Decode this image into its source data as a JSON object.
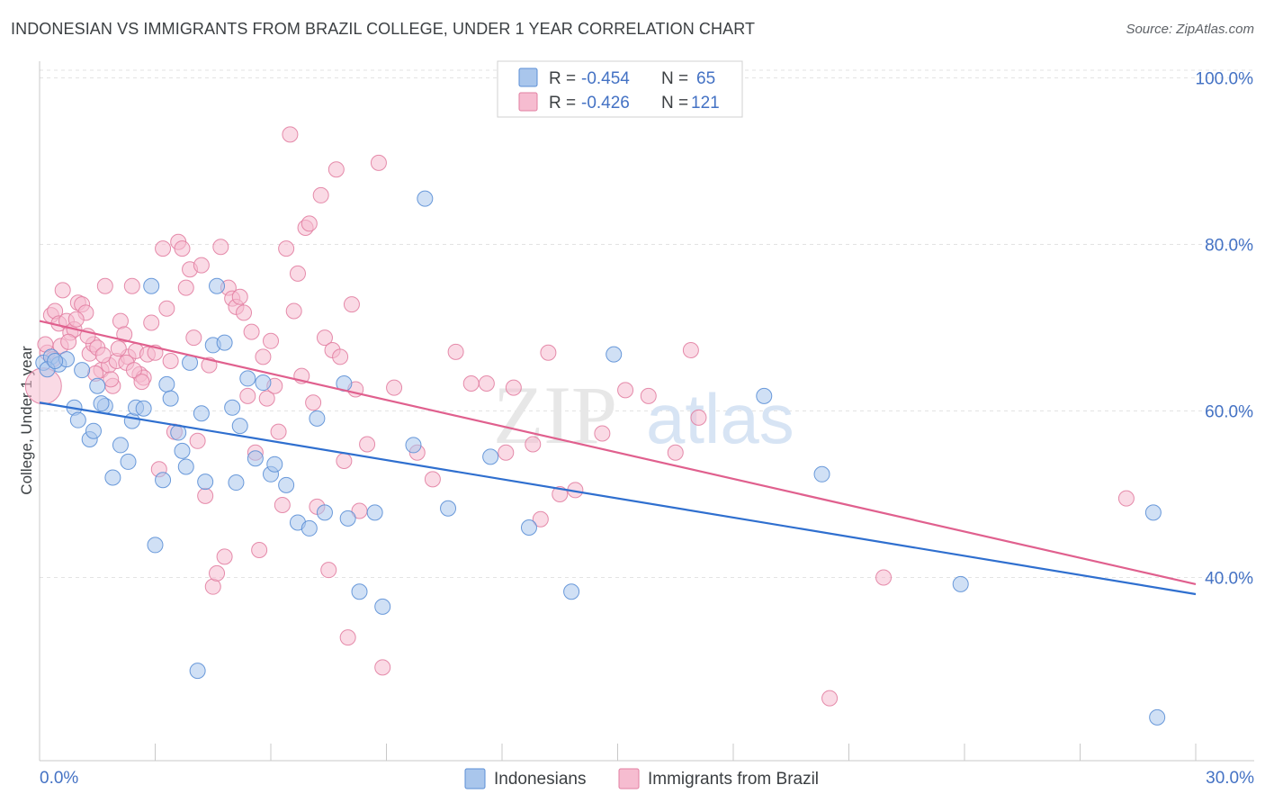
{
  "header": {
    "title": "INDONESIAN VS IMMIGRANTS FROM BRAZIL COLLEGE, UNDER 1 YEAR CORRELATION CHART",
    "source": "Source: ZipAtlas.com"
  },
  "watermark": {
    "zip": "ZIP",
    "atlas": "atlas"
  },
  "legend_top": [
    {
      "r_label": "R = ",
      "r_value": "-0.454",
      "n_label": "N = ",
      "n_value": "65",
      "color": "#a9c6ec",
      "stroke": "#5b8fd6"
    },
    {
      "r_label": "R = ",
      "r_value": "-0.426",
      "n_label": "N = ",
      "n_value": "121",
      "color": "#f6bcd0",
      "stroke": "#e27fa2"
    }
  ],
  "chart_data": {
    "type": "scatter",
    "title": "INDONESIAN VS IMMIGRANTS FROM BRAZIL COLLEGE, UNDER 1 YEAR CORRELATION CHART",
    "xlabel": "",
    "ylabel": "College, Under 1 year",
    "xlim": [
      0,
      30
    ],
    "ylim": [
      18,
      102
    ],
    "x_tick_labels": [
      "0.0%",
      "30.0%"
    ],
    "y_ticks": [
      40,
      60,
      80,
      100
    ],
    "y_tick_labels": [
      "40.0%",
      "60.0%",
      "80.0%",
      "100.0%"
    ],
    "grid": true,
    "legend_position": "top-center",
    "series": [
      {
        "name": "Indonesians",
        "color": "#a9c6ec",
        "stroke": "#5b8fd6",
        "line_color": "#2f6fcf",
        "trend": [
          [
            0,
            61.0
          ],
          [
            30,
            38.0
          ]
        ],
        "points": [
          [
            0.1,
            65.8
          ],
          [
            0.3,
            66.5
          ],
          [
            0.5,
            65.6
          ],
          [
            0.7,
            66.2
          ],
          [
            0.9,
            60.4
          ],
          [
            1.0,
            58.9
          ],
          [
            1.1,
            64.9
          ],
          [
            1.3,
            56.6
          ],
          [
            1.4,
            57.6
          ],
          [
            1.5,
            63.0
          ],
          [
            1.7,
            60.6
          ],
          [
            1.9,
            52.0
          ],
          [
            2.1,
            55.9
          ],
          [
            2.3,
            53.9
          ],
          [
            2.4,
            58.8
          ],
          [
            2.5,
            60.4
          ],
          [
            2.7,
            60.3
          ],
          [
            2.9,
            75.0
          ],
          [
            3.0,
            43.9
          ],
          [
            3.2,
            51.7
          ],
          [
            3.3,
            63.2
          ],
          [
            3.4,
            61.5
          ],
          [
            3.6,
            57.4
          ],
          [
            3.7,
            55.2
          ],
          [
            3.8,
            53.3
          ],
          [
            3.9,
            65.8
          ],
          [
            4.1,
            28.8
          ],
          [
            4.2,
            59.7
          ],
          [
            4.3,
            51.5
          ],
          [
            4.5,
            67.9
          ],
          [
            4.6,
            75.0
          ],
          [
            4.8,
            68.2
          ],
          [
            5.0,
            60.4
          ],
          [
            5.1,
            51.4
          ],
          [
            5.2,
            58.2
          ],
          [
            5.4,
            63.9
          ],
          [
            5.6,
            54.3
          ],
          [
            5.8,
            63.4
          ],
          [
            6.0,
            52.4
          ],
          [
            6.1,
            53.6
          ],
          [
            6.4,
            51.1
          ],
          [
            6.7,
            46.6
          ],
          [
            7.0,
            45.9
          ],
          [
            7.2,
            59.1
          ],
          [
            7.4,
            47.8
          ],
          [
            7.9,
            63.3
          ],
          [
            8.0,
            47.1
          ],
          [
            8.3,
            38.3
          ],
          [
            8.7,
            47.8
          ],
          [
            8.9,
            36.5
          ],
          [
            9.7,
            55.9
          ],
          [
            10.0,
            85.5
          ],
          [
            10.6,
            48.3
          ],
          [
            11.7,
            54.5
          ],
          [
            12.7,
            46.0
          ],
          [
            13.8,
            38.3
          ],
          [
            14.9,
            66.8
          ],
          [
            18.8,
            61.8
          ],
          [
            20.3,
            52.4
          ],
          [
            23.9,
            39.2
          ],
          [
            28.9,
            47.8
          ],
          [
            29.0,
            23.2
          ],
          [
            0.2,
            65.0
          ],
          [
            0.4,
            66.0
          ],
          [
            1.6,
            60.9
          ]
        ]
      },
      {
        "name": "Immigrants from Brazil",
        "color": "#f6bcd0",
        "stroke": "#e27fa2",
        "line_color": "#e0608e",
        "trend": [
          [
            0,
            70.8
          ],
          [
            30,
            39.2
          ]
        ],
        "points": [
          [
            0.1,
            63.0
          ],
          [
            0.2,
            67.0
          ],
          [
            0.3,
            71.5
          ],
          [
            0.4,
            72.0
          ],
          [
            0.5,
            70.5
          ],
          [
            0.6,
            74.5
          ],
          [
            0.7,
            70.8
          ],
          [
            0.8,
            69.4
          ],
          [
            0.9,
            69.8
          ],
          [
            1.0,
            73.0
          ],
          [
            1.1,
            72.8
          ],
          [
            1.2,
            71.8
          ],
          [
            1.3,
            66.9
          ],
          [
            1.4,
            68.0
          ],
          [
            1.5,
            67.6
          ],
          [
            1.6,
            64.9
          ],
          [
            1.7,
            75.0
          ],
          [
            1.8,
            65.5
          ],
          [
            1.9,
            63.0
          ],
          [
            2.0,
            66.0
          ],
          [
            2.1,
            70.8
          ],
          [
            2.2,
            69.2
          ],
          [
            2.3,
            66.5
          ],
          [
            2.4,
            75.0
          ],
          [
            2.5,
            67.2
          ],
          [
            2.6,
            64.4
          ],
          [
            2.7,
            64.0
          ],
          [
            2.8,
            66.8
          ],
          [
            2.9,
            70.6
          ],
          [
            3.0,
            67.0
          ],
          [
            3.1,
            53.0
          ],
          [
            3.2,
            79.5
          ],
          [
            3.3,
            72.3
          ],
          [
            3.4,
            66.0
          ],
          [
            3.5,
            57.5
          ],
          [
            3.6,
            80.3
          ],
          [
            3.7,
            79.5
          ],
          [
            3.8,
            74.8
          ],
          [
            3.9,
            77.0
          ],
          [
            4.0,
            68.8
          ],
          [
            4.1,
            56.4
          ],
          [
            4.2,
            77.5
          ],
          [
            4.3,
            49.8
          ],
          [
            4.4,
            65.5
          ],
          [
            4.5,
            38.9
          ],
          [
            4.6,
            40.5
          ],
          [
            4.7,
            79.7
          ],
          [
            4.8,
            42.5
          ],
          [
            4.9,
            74.8
          ],
          [
            5.0,
            73.5
          ],
          [
            5.1,
            72.5
          ],
          [
            5.2,
            73.7
          ],
          [
            5.3,
            71.8
          ],
          [
            5.4,
            61.8
          ],
          [
            5.5,
            69.5
          ],
          [
            5.6,
            55.0
          ],
          [
            5.7,
            43.3
          ],
          [
            5.8,
            66.5
          ],
          [
            5.9,
            61.5
          ],
          [
            6.0,
            68.4
          ],
          [
            6.1,
            63.0
          ],
          [
            6.2,
            57.5
          ],
          [
            6.3,
            48.7
          ],
          [
            6.4,
            79.5
          ],
          [
            6.5,
            93.2
          ],
          [
            6.6,
            72.0
          ],
          [
            6.7,
            76.5
          ],
          [
            6.8,
            64.2
          ],
          [
            6.9,
            82.0
          ],
          [
            7.0,
            82.5
          ],
          [
            7.1,
            61.0
          ],
          [
            7.2,
            48.5
          ],
          [
            7.3,
            85.9
          ],
          [
            7.4,
            68.8
          ],
          [
            7.5,
            40.9
          ],
          [
            7.6,
            67.3
          ],
          [
            7.7,
            89.0
          ],
          [
            7.8,
            66.5
          ],
          [
            7.9,
            54.0
          ],
          [
            8.0,
            32.8
          ],
          [
            8.1,
            72.8
          ],
          [
            8.2,
            62.6
          ],
          [
            8.3,
            48.0
          ],
          [
            8.5,
            56.0
          ],
          [
            8.8,
            89.8
          ],
          [
            8.9,
            29.2
          ],
          [
            9.2,
            62.8
          ],
          [
            9.8,
            55.0
          ],
          [
            10.2,
            51.8
          ],
          [
            10.8,
            67.1
          ],
          [
            11.2,
            63.3
          ],
          [
            11.6,
            63.3
          ],
          [
            12.1,
            55.0
          ],
          [
            12.3,
            62.8
          ],
          [
            12.8,
            56.0
          ],
          [
            13.0,
            47.0
          ],
          [
            13.2,
            67.0
          ],
          [
            13.5,
            50.0
          ],
          [
            13.9,
            50.5
          ],
          [
            14.6,
            57.3
          ],
          [
            15.2,
            62.5
          ],
          [
            15.8,
            61.8
          ],
          [
            16.5,
            55.0
          ],
          [
            16.9,
            67.3
          ],
          [
            17.1,
            59.2
          ],
          [
            20.5,
            25.5
          ],
          [
            21.9,
            40.0
          ],
          [
            28.2,
            49.5
          ],
          [
            0.15,
            68.0
          ],
          [
            0.35,
            66.2
          ],
          [
            0.55,
            67.8
          ],
          [
            0.75,
            68.3
          ],
          [
            0.95,
            71.0
          ],
          [
            1.25,
            69.0
          ],
          [
            1.45,
            64.5
          ],
          [
            1.65,
            66.7
          ],
          [
            1.85,
            63.8
          ],
          [
            2.05,
            67.5
          ],
          [
            2.25,
            65.8
          ],
          [
            2.45,
            64.9
          ],
          [
            2.65,
            63.5
          ]
        ]
      }
    ],
    "bottom_legend": [
      "Indonesians",
      "Immigrants from Brazil"
    ]
  }
}
